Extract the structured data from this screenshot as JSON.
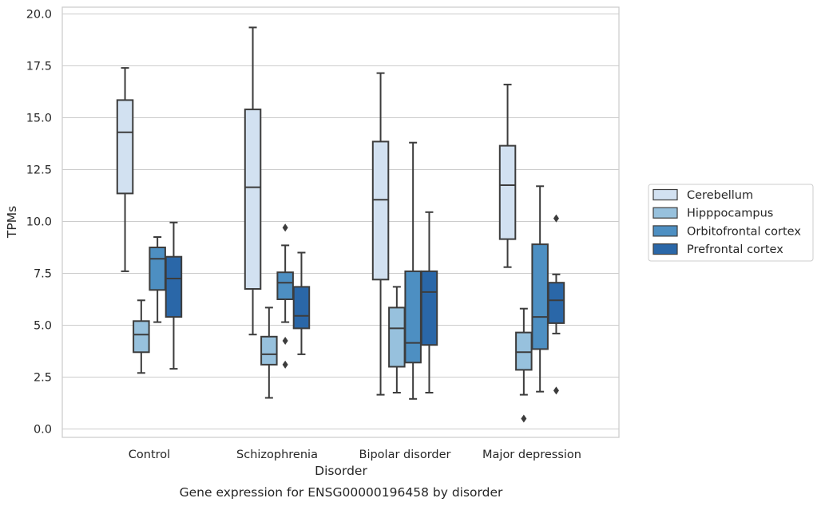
{
  "chart_data": {
    "type": "box",
    "xlabel": "Disorder",
    "ylabel": "TPMs",
    "caption": "Gene expression for ENSG00000196458 by disorder",
    "ylim": [
      -0.4,
      20.3
    ],
    "yticks": [
      0.0,
      2.5,
      5.0,
      7.5,
      10.0,
      12.5,
      15.0,
      17.5,
      20.0
    ],
    "ytick_labels": [
      "0.0",
      "2.5",
      "5.0",
      "7.5",
      "10.0",
      "12.5",
      "15.0",
      "17.5",
      "20.0"
    ],
    "grid": "horizontal",
    "legend_placement": "right-outside",
    "categories": [
      "Control",
      "Schizophrenia",
      "Bipolar disorder",
      "Major depression"
    ],
    "series": [
      {
        "name": "Cerebellum",
        "color": "#d2e1f1",
        "boxes": [
          {
            "whislo": 7.6,
            "q1": 11.35,
            "med": 14.3,
            "q3": 15.85,
            "whishi": 17.4,
            "fliers": []
          },
          {
            "whislo": 4.55,
            "q1": 6.75,
            "med": 11.65,
            "q3": 15.4,
            "whishi": 19.35,
            "fliers": []
          },
          {
            "whislo": 1.65,
            "q1": 7.2,
            "med": 11.05,
            "q3": 13.85,
            "whishi": 17.15,
            "fliers": []
          },
          {
            "whislo": 7.8,
            "q1": 9.15,
            "med": 11.75,
            "q3": 13.65,
            "whishi": 16.6,
            "fliers": []
          }
        ]
      },
      {
        "name": "Hipppocampus",
        "color": "#97c1dd",
        "boxes": [
          {
            "whislo": 2.7,
            "q1": 3.7,
            "med": 4.55,
            "q3": 5.2,
            "whishi": 6.2,
            "fliers": []
          },
          {
            "whislo": 1.5,
            "q1": 3.1,
            "med": 3.6,
            "q3": 4.45,
            "whishi": 5.85,
            "fliers": []
          },
          {
            "whislo": 1.75,
            "q1": 3.0,
            "med": 4.85,
            "q3": 5.85,
            "whishi": 6.85,
            "fliers": []
          },
          {
            "whislo": 1.65,
            "q1": 2.85,
            "med": 3.7,
            "q3": 4.65,
            "whishi": 5.8,
            "fliers": [
              0.5
            ]
          }
        ]
      },
      {
        "name": "Orbitofrontal cortex",
        "color": "#4d8fc2",
        "boxes": [
          {
            "whislo": 5.15,
            "q1": 6.7,
            "med": 8.2,
            "q3": 8.75,
            "whishi": 9.25,
            "fliers": []
          },
          {
            "whislo": 5.15,
            "q1": 6.25,
            "med": 7.05,
            "q3": 7.55,
            "whishi": 8.85,
            "fliers": [
              9.7,
              4.25,
              3.1
            ]
          },
          {
            "whislo": 1.45,
            "q1": 3.2,
            "med": 4.15,
            "q3": 7.6,
            "whishi": 13.8,
            "fliers": []
          },
          {
            "whislo": 1.8,
            "q1": 3.85,
            "med": 5.4,
            "q3": 8.9,
            "whishi": 11.7,
            "fliers": []
          }
        ]
      },
      {
        "name": "Prefrontal cortex",
        "color": "#2a67a8",
        "boxes": [
          {
            "whislo": 2.9,
            "q1": 5.4,
            "med": 7.25,
            "q3": 8.3,
            "whishi": 9.95,
            "fliers": []
          },
          {
            "whislo": 3.6,
            "q1": 4.85,
            "med": 5.45,
            "q3": 6.85,
            "whishi": 8.5,
            "fliers": []
          },
          {
            "whislo": 1.75,
            "q1": 4.05,
            "med": 6.6,
            "q3": 7.6,
            "whishi": 10.45,
            "fliers": []
          },
          {
            "whislo": 4.6,
            "q1": 5.1,
            "med": 6.2,
            "q3": 7.05,
            "whishi": 7.45,
            "fliers": [
              10.15,
              1.85
            ]
          }
        ]
      }
    ]
  }
}
